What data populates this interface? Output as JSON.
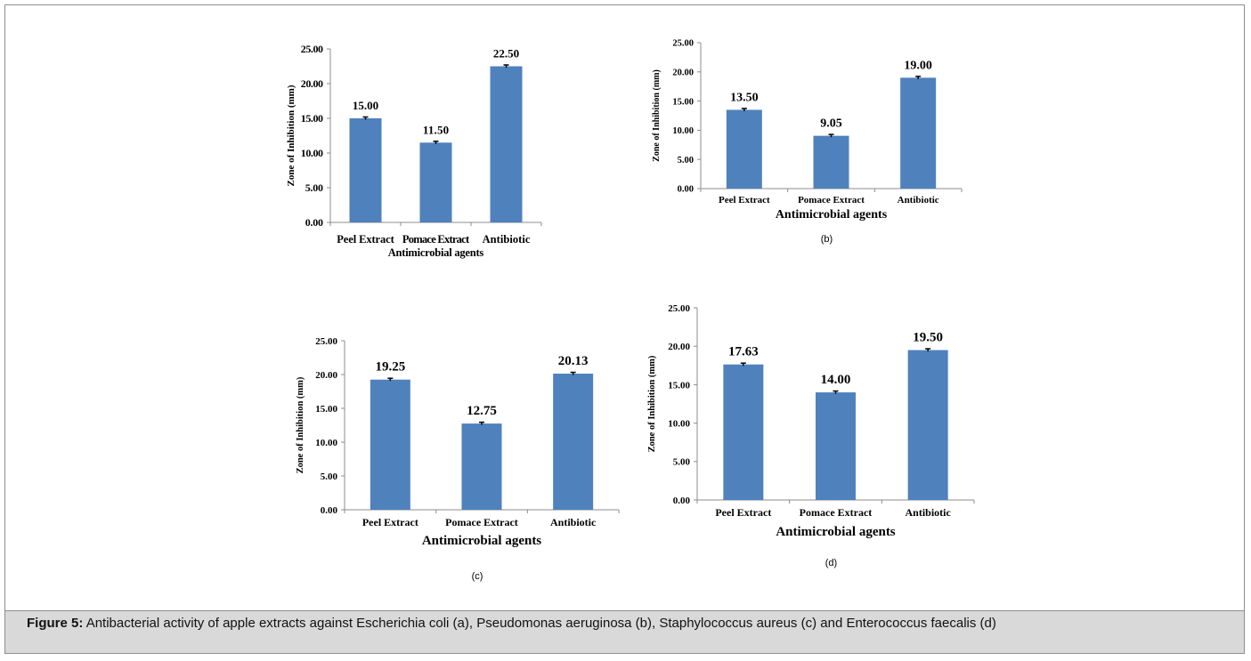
{
  "figure": {
    "caption_label": "Figure 5:",
    "caption_text": "Antibacterial activity of apple extracts against Escherichia coli (a), Pseudomonas aeruginosa (b), Staphylococcus aureus (c) and Enterococcus faecalis (d)"
  },
  "style": {
    "bar_color": "#4f81bd",
    "axis_color": "#8c8c8c",
    "caption_bg": "#d9d9d9"
  },
  "chart_data": [
    {
      "type": "bar",
      "panel_label": "",
      "categories": [
        "Peel Extract",
        "Pomace Extract",
        "Antibiotic"
      ],
      "values": [
        15.0,
        11.5,
        22.5
      ],
      "value_labels": [
        "15.00",
        "11.50",
        "22.50"
      ],
      "ylim": [
        0,
        25
      ],
      "yticks": [
        "0.00",
        "5.00",
        "10.00",
        "15.00",
        "20.00",
        "25.00"
      ],
      "xlabel": "Antimicrobial agents",
      "ylabel": "Zone of Inhibition (mm)",
      "error_bars": true
    },
    {
      "type": "bar",
      "panel_label": "(b)",
      "categories": [
        "Peel Extract",
        "Pomace Extract",
        "Antibiotic"
      ],
      "values": [
        13.5,
        9.05,
        19.0
      ],
      "value_labels": [
        "13.50",
        "9.05",
        "19.00"
      ],
      "ylim": [
        0,
        25
      ],
      "yticks": [
        "0.00",
        "5.00",
        "10.00",
        "15.00",
        "20.00",
        "25.00"
      ],
      "xlabel": "Antimicrobial agents",
      "ylabel": "Zone of Inhibition (mm)",
      "error_bars": true
    },
    {
      "type": "bar",
      "panel_label": "(c)",
      "categories": [
        "Peel Extract",
        "Pomace Extract",
        "Antibiotic"
      ],
      "values": [
        19.25,
        12.75,
        20.13
      ],
      "value_labels": [
        "19.25",
        "12.75",
        "20.13"
      ],
      "ylim": [
        0,
        25
      ],
      "yticks": [
        "0.00",
        "5.00",
        "10.00",
        "15.00",
        "20.00",
        "25.00"
      ],
      "xlabel": "Antimicrobial agents",
      "ylabel": "Zone of Inhibition (mm)",
      "error_bars": true
    },
    {
      "type": "bar",
      "panel_label": "(d)",
      "categories": [
        "Peel Extract",
        "Pomace Extract",
        "Antibiotic"
      ],
      "values": [
        17.63,
        14.0,
        19.5
      ],
      "value_labels": [
        "17.63",
        "14.00",
        "19.50"
      ],
      "ylim": [
        0,
        25
      ],
      "yticks": [
        "0.00",
        "5.00",
        "10.00",
        "15.00",
        "20.00",
        "25.00"
      ],
      "xlabel": "Antimicrobial agents",
      "ylabel": "Zone of Inhibition (mm)",
      "error_bars": true
    }
  ]
}
